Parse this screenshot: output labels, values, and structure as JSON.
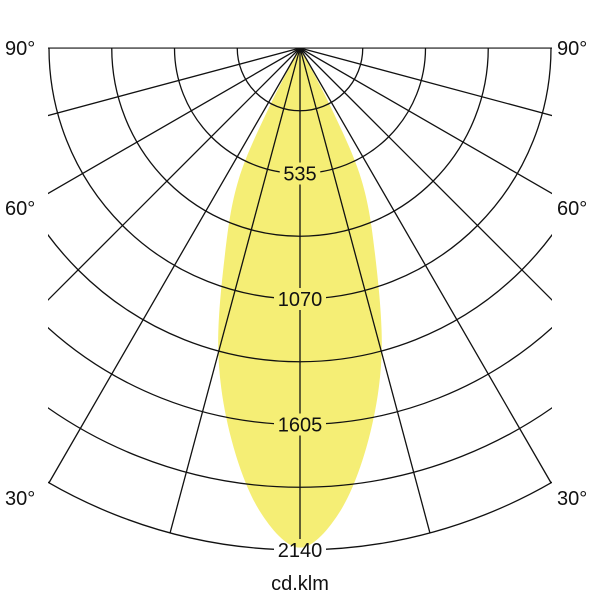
{
  "chart_data": {
    "type": "polar",
    "unit_label": "cd.klm",
    "radial_ticks": [
      535,
      1070,
      1605,
      2140
    ],
    "radial_max": 2140,
    "radial_rings": 8,
    "angle_labels_left": [
      "90°",
      "60°",
      "30°"
    ],
    "angle_labels_right": [
      "90°",
      "60°",
      "30°"
    ],
    "angle_grid_step_deg": 15,
    "fill_color": "#f5ee75",
    "grid_color": "#111111",
    "series": [
      {
        "angles_deg": [
          0,
          5,
          10,
          15,
          20,
          25,
          27.5,
          30
        ],
        "values": [
          2130,
          1980,
          1690,
          1345,
          935,
          620,
          290,
          0
        ]
      }
    ]
  }
}
